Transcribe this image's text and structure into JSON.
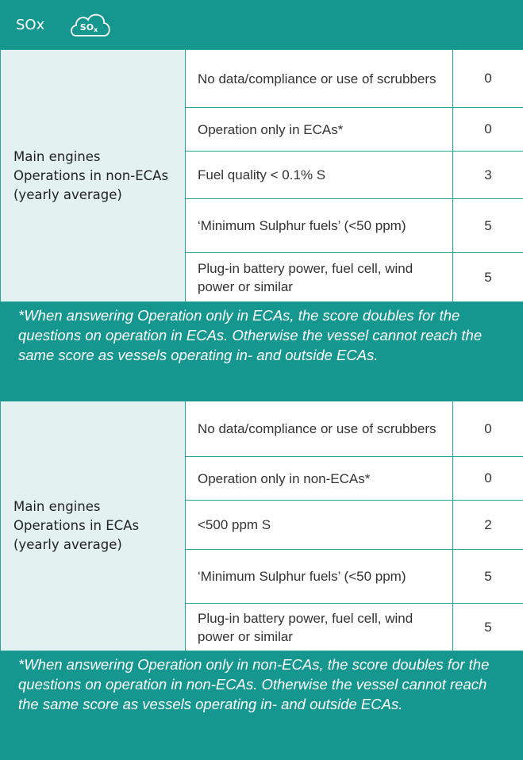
{
  "header": {
    "title": "SOx",
    "icon_label": "SO",
    "icon_subscript": "x"
  },
  "sections": [
    {
      "label": [
        "Main engines",
        "Operations in non-ECAs",
        "(yearly average)"
      ],
      "rows": [
        {
          "option": "No data/compliance or use of scrubbers",
          "score": 0
        },
        {
          "option": "Operation only in ECAs*",
          "score": 0
        },
        {
          "option": "Fuel quality < 0.1% S",
          "score": 3
        },
        {
          "option": "‘Minimum Sulphur fuels’ (<50 ppm)",
          "score": 5
        },
        {
          "option": "Plug-in battery power, fuel cell, wind power or similar",
          "score": 5
        }
      ],
      "footnote": "*When answering Operation only in ECAs, the score doubles for the questions on operation in ECAs. Otherwise the vessel cannot reach the same score as vessels operating in- and outside ECAs."
    },
    {
      "label": [
        "Main engines",
        "Operations in ECAs",
        "(yearly average)"
      ],
      "rows": [
        {
          "option": "No data/compliance or use of scrubbers",
          "score": 0
        },
        {
          "option": "Operation only in non-ECAs*",
          "score": 0
        },
        {
          "option": "<500 ppm S",
          "score": 2
        },
        {
          "option": "‘Minimum Sulphur fuels’ (<50 ppm)",
          "score": 5
        },
        {
          "option": "Plug-in battery power, fuel cell, wind power or similar",
          "score": 5
        }
      ],
      "footnote": "*When answering Operation only in non-ECAs, the score doubles for the questions on operation in non-ECAs. Otherwise the vessel cannot reach the same score as vessels operating in- and outside ECAs."
    }
  ]
}
